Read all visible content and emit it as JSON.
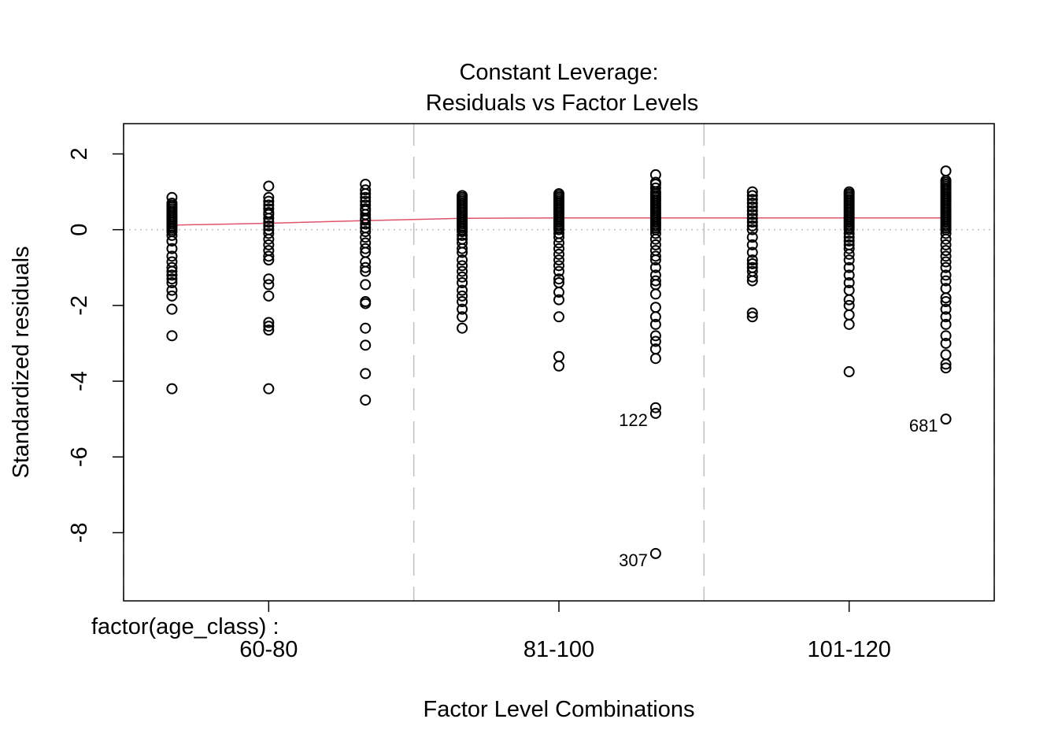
{
  "chart_data": {
    "type": "scatter",
    "title": "Constant Leverage:",
    "subtitle": "Residuals vs Factor Levels",
    "xlabel": "Factor Level Combinations",
    "ylabel": "Standardized residuals",
    "factor_label": "factor(age_class) :",
    "x_tick_labels": [
      {
        "x": 2,
        "label": "60-80"
      },
      {
        "x": 5,
        "label": "81-100"
      },
      {
        "x": 8,
        "label": "101-120"
      }
    ],
    "y_ticks": [
      2,
      0,
      -2,
      -4,
      -6,
      -8
    ],
    "xlim": [
      0.5,
      9.5
    ],
    "ylim": [
      -9.8,
      2.8
    ],
    "group_separators": [
      0.5,
      3.5,
      6.5,
      9.5
    ],
    "zero_line": 0,
    "grid": false,
    "series": [
      {
        "x": 1,
        "values": [
          0.85,
          0.7,
          0.65,
          0.6,
          0.55,
          0.5,
          0.45,
          0.4,
          0.35,
          0.3,
          0.25,
          0.2,
          0.15,
          0.1,
          0.05,
          0.0,
          -0.05,
          -0.15,
          -0.3,
          -0.5,
          -0.7,
          -0.85,
          -1.0,
          -1.1,
          -1.2,
          -1.3,
          -1.4,
          -1.6,
          -1.75,
          -2.1,
          -2.8,
          -4.2
        ]
      },
      {
        "x": 2,
        "values": [
          1.15,
          0.85,
          0.75,
          0.65,
          0.55,
          0.45,
          0.4,
          0.3,
          0.2,
          0.1,
          0.0,
          -0.1,
          -0.25,
          -0.4,
          -0.55,
          -0.7,
          -0.8,
          -1.3,
          -1.45,
          -1.75,
          -2.45,
          -2.55,
          -2.65,
          -4.2
        ]
      },
      {
        "x": 3,
        "values": [
          1.2,
          1.05,
          0.95,
          0.85,
          0.75,
          0.65,
          0.55,
          0.5,
          0.4,
          0.3,
          0.25,
          0.15,
          0.05,
          -0.05,
          -0.2,
          -0.35,
          -0.5,
          -0.6,
          -0.85,
          -1.0,
          -1.1,
          -1.45,
          -1.9,
          -1.95,
          -2.6,
          -3.05,
          -3.8,
          -4.5
        ]
      },
      {
        "x": 4,
        "values": [
          0.9,
          0.85,
          0.8,
          0.75,
          0.7,
          0.65,
          0.6,
          0.55,
          0.5,
          0.45,
          0.4,
          0.35,
          0.3,
          0.25,
          0.2,
          0.15,
          0.1,
          0.05,
          0.0,
          -0.05,
          -0.15,
          -0.25,
          -0.35,
          -0.5,
          -0.6,
          -0.8,
          -0.95,
          -1.1,
          -1.25,
          -1.4,
          -1.6,
          -1.75,
          -1.9,
          -2.1,
          -2.3,
          -2.6
        ]
      },
      {
        "x": 5,
        "values": [
          0.95,
          0.9,
          0.85,
          0.8,
          0.75,
          0.7,
          0.65,
          0.6,
          0.55,
          0.5,
          0.45,
          0.4,
          0.35,
          0.3,
          0.25,
          0.2,
          0.15,
          0.1,
          0.05,
          0.0,
          -0.1,
          -0.2,
          -0.35,
          -0.5,
          -0.65,
          -0.8,
          -0.95,
          -1.1,
          -1.3,
          -1.4,
          -1.65,
          -1.85,
          -2.3,
          -3.35,
          -3.6
        ]
      },
      {
        "x": 6,
        "values": [
          1.45,
          1.25,
          1.2,
          1.1,
          1.0,
          0.95,
          0.9,
          0.85,
          0.8,
          0.75,
          0.7,
          0.65,
          0.6,
          0.55,
          0.5,
          0.45,
          0.4,
          0.35,
          0.3,
          0.25,
          0.2,
          0.15,
          0.1,
          0.05,
          0.0,
          -0.1,
          -0.25,
          -0.4,
          -0.55,
          -0.7,
          -0.8,
          -1.0,
          -1.2,
          -1.35,
          -1.45,
          -1.7,
          -2.05,
          -2.3,
          -2.5,
          -2.8,
          -2.95,
          -3.15,
          -3.4,
          -4.7,
          -4.85,
          -8.55
        ]
      },
      {
        "x": 7,
        "values": [
          1.0,
          0.9,
          0.8,
          0.7,
          0.6,
          0.5,
          0.4,
          0.3,
          0.2,
          0.1,
          0.0,
          -0.2,
          -0.4,
          -0.6,
          -0.8,
          -0.9,
          -1.0,
          -1.1,
          -1.25,
          -1.35,
          -2.2,
          -2.3
        ]
      },
      {
        "x": 8,
        "values": [
          1.0,
          0.95,
          0.9,
          0.85,
          0.8,
          0.75,
          0.7,
          0.65,
          0.6,
          0.55,
          0.5,
          0.45,
          0.4,
          0.35,
          0.3,
          0.25,
          0.2,
          0.15,
          0.1,
          0.05,
          0.0,
          -0.1,
          -0.2,
          -0.3,
          -0.4,
          -0.5,
          -0.65,
          -0.8,
          -1.0,
          -1.2,
          -1.4,
          -1.6,
          -1.85,
          -2.0,
          -2.25,
          -2.5,
          -3.75
        ]
      },
      {
        "x": 9,
        "values": [
          1.55,
          1.3,
          1.25,
          1.2,
          1.15,
          1.1,
          1.05,
          1.0,
          0.95,
          0.9,
          0.85,
          0.8,
          0.75,
          0.7,
          0.65,
          0.6,
          0.55,
          0.5,
          0.45,
          0.4,
          0.35,
          0.3,
          0.25,
          0.2,
          0.15,
          0.1,
          0.05,
          0.0,
          -0.1,
          -0.25,
          -0.4,
          -0.55,
          -0.7,
          -0.85,
          -1.0,
          -1.2,
          -1.35,
          -1.55,
          -1.8,
          -1.9,
          -2.1,
          -2.3,
          -2.5,
          -2.8,
          -3.0,
          -3.3,
          -3.55,
          -3.65,
          -5.0
        ]
      }
    ],
    "smoother": {
      "color": "#DF536B",
      "x": [
        1,
        2,
        3,
        4,
        5,
        6,
        7,
        8,
        9
      ],
      "y": [
        0.12,
        0.17,
        0.24,
        0.3,
        0.31,
        0.31,
        0.31,
        0.31,
        0.31
      ]
    },
    "annotations": [
      {
        "label": "122",
        "x": 6,
        "y": -4.85
      },
      {
        "label": "307",
        "x": 6,
        "y": -8.55
      },
      {
        "label": "681",
        "x": 9,
        "y": -5.0
      }
    ],
    "colors": {
      "points": "#000000",
      "smoother": "#DF536B",
      "separators": "#BEBEBE",
      "zero_line": "#BEBEBE"
    }
  }
}
